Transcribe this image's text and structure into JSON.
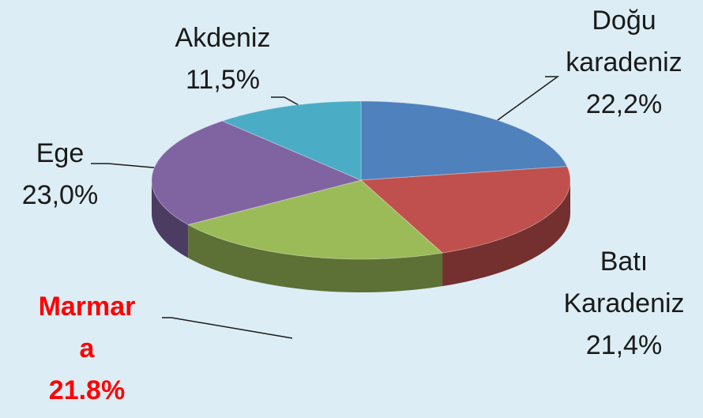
{
  "chart_data": {
    "type": "pie3d",
    "categories": [
      "Doğu karadeniz",
      "Batı Karadeniz",
      "Marmara",
      "Ege",
      "Akdeniz"
    ],
    "values": [
      22.2,
      21.4,
      21.8,
      23.0,
      11.5
    ],
    "value_labels": [
      "22,2%",
      "21,4%",
      "21.8%",
      "23,0%",
      "11,5%"
    ],
    "colors": [
      "#4f81bd",
      "#c0504d",
      "#9bbb59",
      "#8064a2",
      "#4bacc6"
    ],
    "highlight_color": "#ff0000"
  }
}
